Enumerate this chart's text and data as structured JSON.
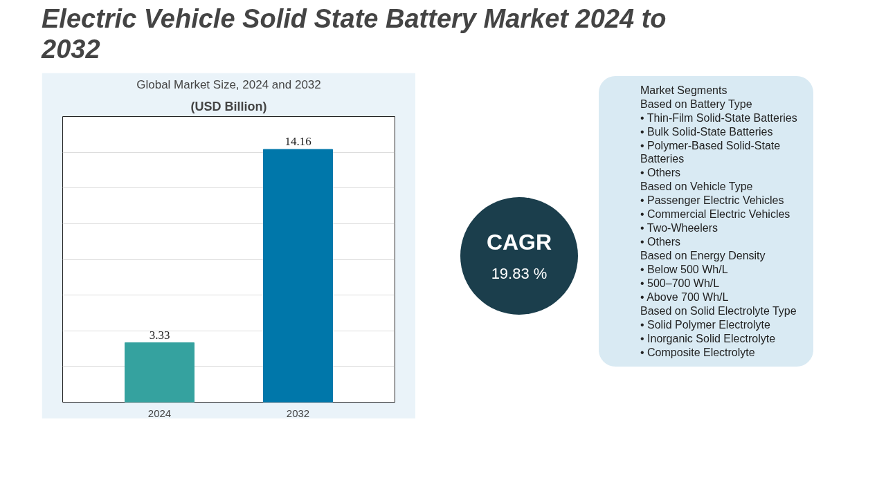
{
  "chart_data": {
    "type": "bar",
    "title": "Electric Vehicle Solid State Battery Market 2024 to 2032",
    "subtitle": "Global Market Size, 2024 and 2032",
    "categories": [
      "2024",
      "2032"
    ],
    "values": [
      3.33,
      14.16
    ],
    "colors": [
      "#35a29f",
      "#0077aa"
    ],
    "data_labels": true,
    "ylim": [
      0,
      16
    ],
    "yticks": [
      {
        "value": 0,
        "label": null
      },
      {
        "value": 2,
        "label": null
      },
      {
        "value": 4,
        "label": null
      },
      {
        "value": 6,
        "label": null
      },
      {
        "value": 8,
        "label": null
      },
      {
        "value": 10,
        "label": null
      },
      {
        "value": 12,
        "label": null
      },
      {
        "value": 14,
        "label": null
      },
      {
        "value": 16,
        "label": null
      }
    ],
    "grid": "y",
    "tick_labels": "x",
    "annotations": [
      "(USD Billion)",
      "CAGR",
      "19.83 %",
      "Market Segments",
      "Based on Battery Type",
      "• Thin-Film Solid-State Batteries",
      "• Bulk Solid-State Batteries",
      "• Polymer-Based Solid-State Batteries",
      "• Others",
      "Based on Vehicle Type",
      "• Passenger Electric Vehicles",
      "• Commercial Electric Vehicles",
      "• Two-Wheelers",
      "• Others",
      "Based on Energy Density",
      "• Below 500 Wh/L",
      "• 500–700 Wh/L",
      "• Above 700 Wh/L",
      "Based on Solid Electrolyte Type",
      "• Solid Polymer Electrolyte",
      "• Inorganic Solid Electrolyte",
      "• Composite Electrolyte"
    ]
  }
}
